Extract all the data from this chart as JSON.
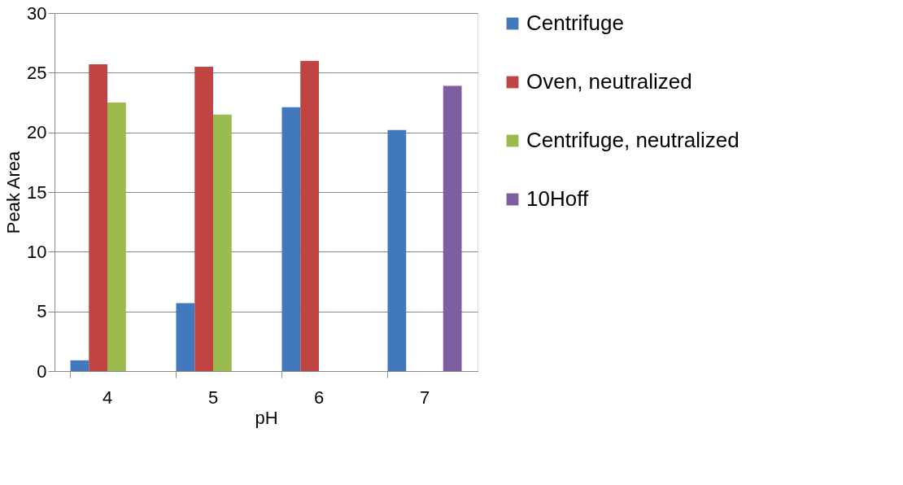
{
  "chart_data": {
    "type": "bar",
    "xlabel": "pH",
    "ylabel": "Peak Area",
    "categories": [
      "4",
      "5",
      "6",
      "7"
    ],
    "series": [
      {
        "name": "Centrifuge",
        "color": "#4279bc",
        "values": [
          0.9,
          5.7,
          22.1,
          20.2
        ]
      },
      {
        "name": "Oven, neutralized",
        "color": "#c04542",
        "values": [
          25.7,
          25.5,
          26.0,
          null
        ]
      },
      {
        "name": "Centrifuge, neutralized",
        "color": "#9bbb4e",
        "values": [
          22.5,
          21.5,
          null,
          null
        ]
      },
      {
        "name": "10Hoff",
        "color": "#7d5ea0",
        "values": [
          null,
          null,
          null,
          23.9
        ]
      }
    ],
    "ylim": [
      0,
      30
    ],
    "yticks": [
      0,
      5,
      10,
      15,
      20,
      25,
      30
    ],
    "grid": "y",
    "legend": "right"
  }
}
